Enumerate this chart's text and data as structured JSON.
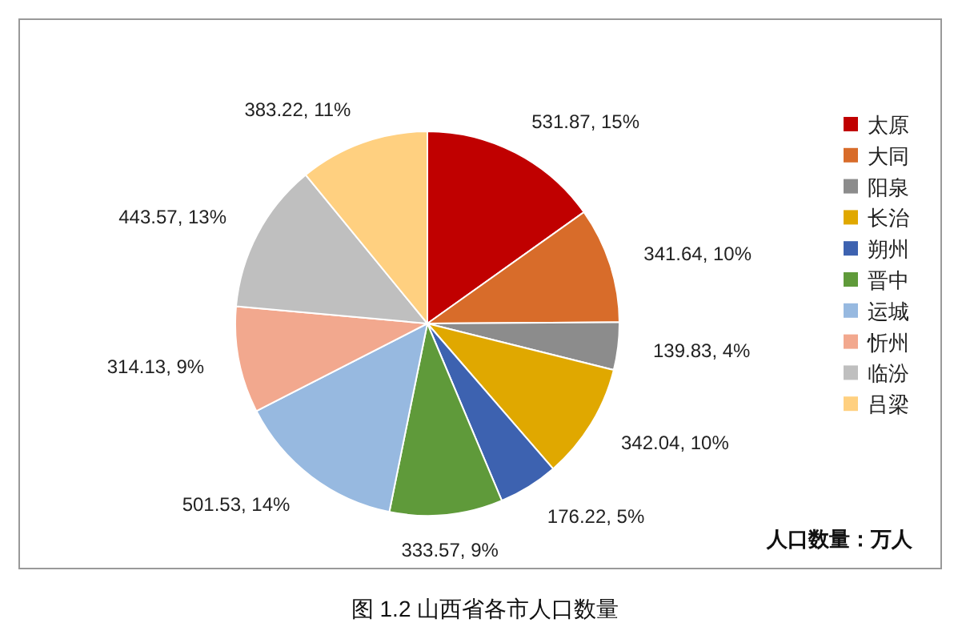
{
  "chart_data": {
    "type": "pie",
    "title": "图 1.2 山西省各市人口数量",
    "categories": [
      "太原",
      "大同",
      "阳泉",
      "长治",
      "朔州",
      "晋中",
      "运城",
      "忻州",
      "临汾",
      "吕梁"
    ],
    "values": [
      531.87,
      341.64,
      139.83,
      342.04,
      176.22,
      333.57,
      501.53,
      314.13,
      443.57,
      383.22
    ],
    "value_labels": [
      "531.87, 15%",
      "341.64, 10%",
      "139.83, 4%",
      "342.04, 10%",
      "176.22, 5%",
      "333.57, 9%",
      "501.53, 14%",
      "314.13, 9%",
      "443.57, 13%",
      "383.22, 11%"
    ],
    "colors": [
      "#c00000",
      "#d86c2a",
      "#8c8c8c",
      "#e0a800",
      "#3d62b0",
      "#5f9a3a",
      "#97b9e0",
      "#f2a88e",
      "#bfbfbf",
      "#ffd080"
    ],
    "legend": "right",
    "annotations": [
      "人口数量：万人"
    ]
  }
}
